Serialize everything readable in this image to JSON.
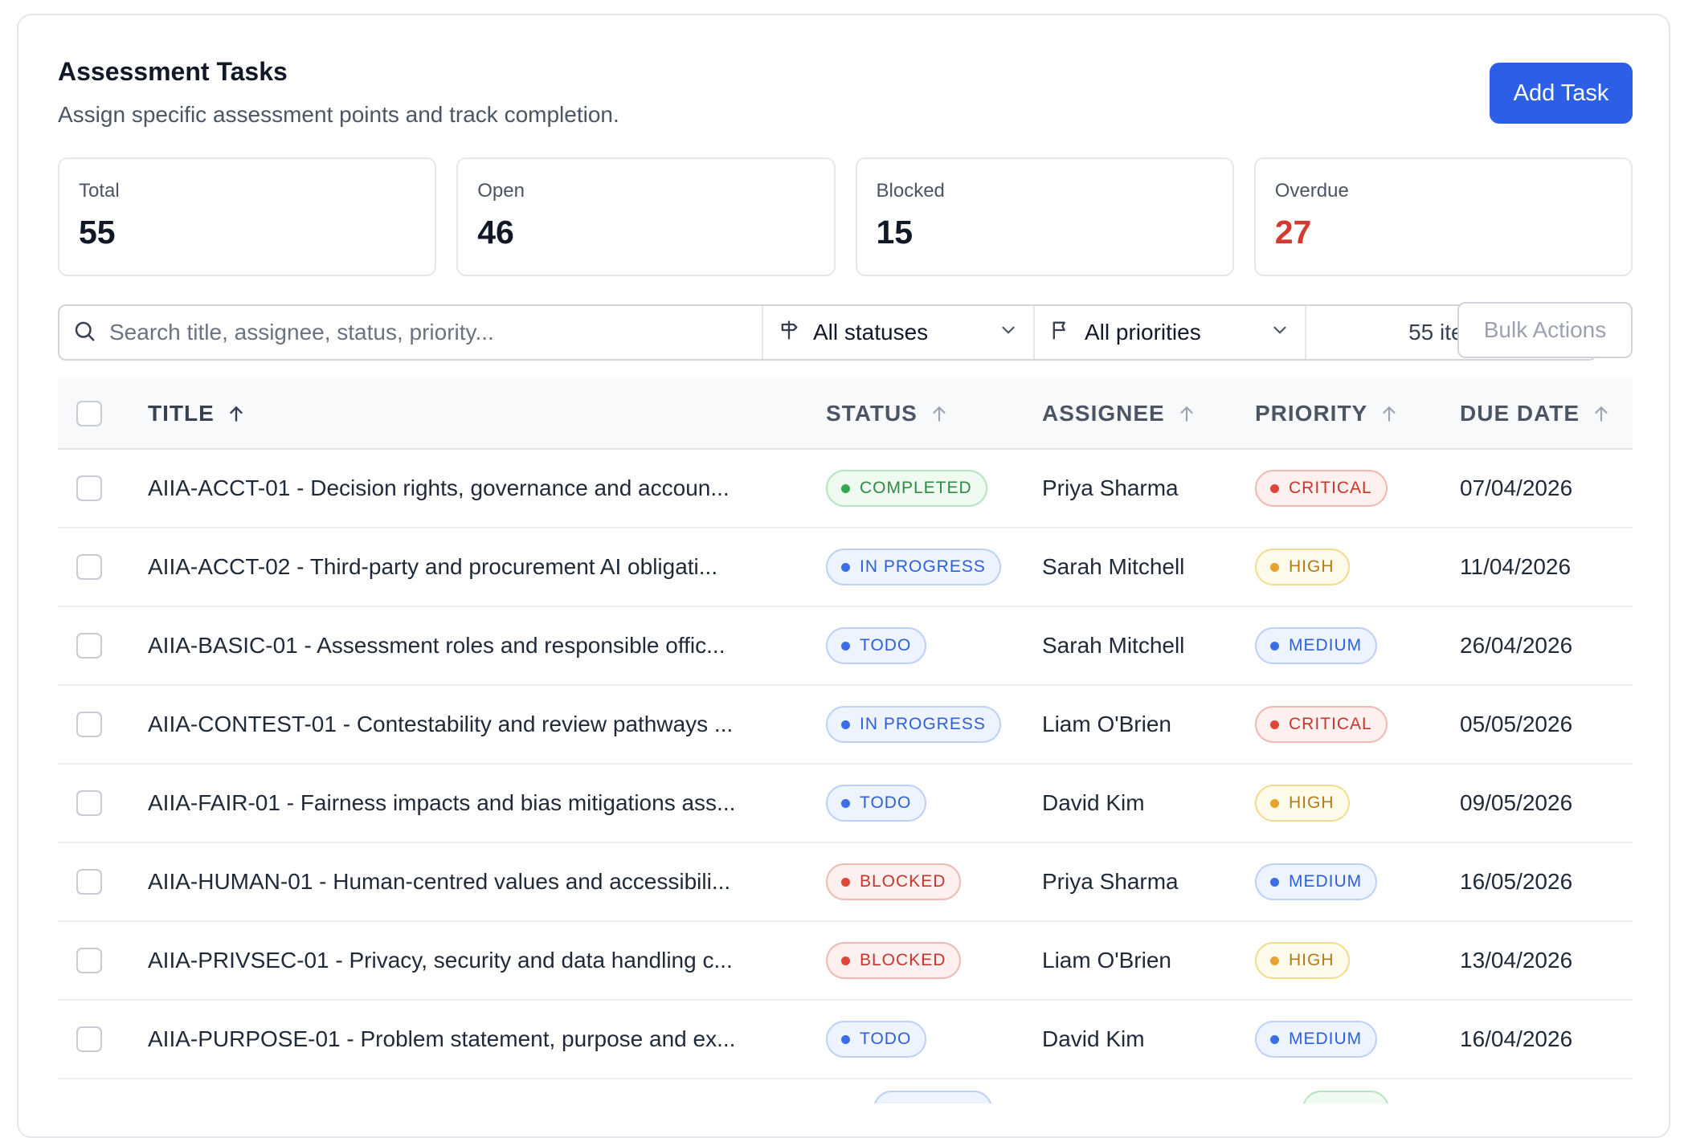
{
  "header": {
    "title": "Assessment Tasks",
    "subtitle": "Assign specific assessment points and track completion.",
    "add_button": "Add Task"
  },
  "stats": {
    "total": {
      "label": "Total",
      "value": "55"
    },
    "open": {
      "label": "Open",
      "value": "46"
    },
    "blocked": {
      "label": "Blocked",
      "value": "15"
    },
    "overdue": {
      "label": "Overdue",
      "value": "27"
    }
  },
  "toolbar": {
    "search_placeholder": "Search title, assignee, status, priority...",
    "status_filter": "All statuses",
    "priority_filter": "All priorities",
    "items_count": "55 items",
    "bulk_actions": "Bulk Actions"
  },
  "table": {
    "columns": {
      "title": "TITLE",
      "status": "STATUS",
      "assignee": "ASSIGNEE",
      "priority": "PRIORITY",
      "due_date": "DUE DATE"
    },
    "rows": [
      {
        "title": "AIIA-ACCT-01 - Decision rights, governance and accoun...",
        "status": "COMPLETED",
        "assignee": "Priya Sharma",
        "priority": "CRITICAL",
        "due": "07/04/2026"
      },
      {
        "title": "AIIA-ACCT-02 - Third-party and procurement AI obligati...",
        "status": "IN PROGRESS",
        "assignee": "Sarah Mitchell",
        "priority": "HIGH",
        "due": "11/04/2026"
      },
      {
        "title": "AIIA-BASIC-01 - Assessment roles and responsible offic...",
        "status": "TODO",
        "assignee": "Sarah Mitchell",
        "priority": "MEDIUM",
        "due": "26/04/2026"
      },
      {
        "title": "AIIA-CONTEST-01 - Contestability and review pathways ...",
        "status": "IN PROGRESS",
        "assignee": "Liam O'Brien",
        "priority": "CRITICAL",
        "due": "05/05/2026"
      },
      {
        "title": "AIIA-FAIR-01 - Fairness impacts and bias mitigations ass...",
        "status": "TODO",
        "assignee": "David Kim",
        "priority": "HIGH",
        "due": "09/05/2026"
      },
      {
        "title": "AIIA-HUMAN-01 - Human-centred values and accessibili...",
        "status": "BLOCKED",
        "assignee": "Priya Sharma",
        "priority": "MEDIUM",
        "due": "16/05/2026"
      },
      {
        "title": "AIIA-PRIVSEC-01 - Privacy, security and data handling c...",
        "status": "BLOCKED",
        "assignee": "Liam O'Brien",
        "priority": "HIGH",
        "due": "13/04/2026"
      },
      {
        "title": "AIIA-PURPOSE-01 - Problem statement, purpose and ex...",
        "status": "TODO",
        "assignee": "David Kim",
        "priority": "MEDIUM",
        "due": "16/04/2026"
      }
    ]
  },
  "colors": {
    "accent": "#2c5fe6",
    "overdue": "#d23a2f"
  }
}
